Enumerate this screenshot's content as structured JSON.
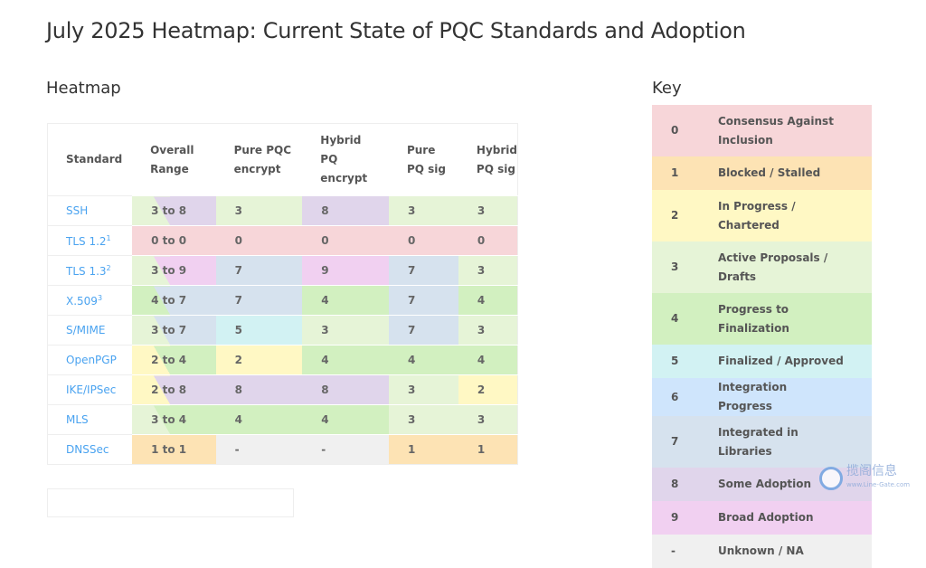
{
  "page_title": "July 2025 Heatmap: Current State of PQC Standards and Adoption",
  "heatmap": {
    "title": "Heatmap",
    "headers": [
      "Standard",
      "Overall Range",
      "Pure PQC encrypt",
      "Hybrid PQ encrypt",
      "Pure PQ sig",
      "Hybrid PQ sig"
    ],
    "rows": [
      {
        "standard": "SSH",
        "sup": "",
        "range": "3 to 8",
        "low": "3",
        "high": "8",
        "values": [
          "3",
          "8",
          "3",
          "3"
        ]
      },
      {
        "standard": "TLS 1.2",
        "sup": "1",
        "range": "0 to 0",
        "low": "0",
        "high": "0",
        "values": [
          "0",
          "0",
          "0",
          "0"
        ]
      },
      {
        "standard": "TLS 1.3",
        "sup": "2",
        "range": "3 to 9",
        "low": "3",
        "high": "9",
        "values": [
          "7",
          "9",
          "7",
          "3"
        ]
      },
      {
        "standard": "X.509",
        "sup": "3",
        "range": "4 to 7",
        "low": "4",
        "high": "7",
        "values": [
          "7",
          "4",
          "7",
          "4"
        ]
      },
      {
        "standard": "S/MIME",
        "sup": "",
        "range": "3 to 7",
        "low": "3",
        "high": "7",
        "values": [
          "5",
          "3",
          "7",
          "3"
        ]
      },
      {
        "standard": "OpenPGP",
        "sup": "",
        "range": "2 to 4",
        "low": "2",
        "high": "4",
        "values": [
          "2",
          "4",
          "4",
          "4"
        ]
      },
      {
        "standard": "IKE/IPSec",
        "sup": "",
        "range": "2 to 8",
        "low": "2",
        "high": "8",
        "values": [
          "8",
          "8",
          "3",
          "2"
        ]
      },
      {
        "standard": "MLS",
        "sup": "",
        "range": "3 to 4",
        "low": "3",
        "high": "4",
        "values": [
          "4",
          "4",
          "3",
          "3"
        ]
      },
      {
        "standard": "DNSSec",
        "sup": "",
        "range": "1 to 1",
        "low": "1",
        "high": "1",
        "values": [
          "-",
          "-",
          "1",
          "1"
        ]
      }
    ]
  },
  "key": {
    "title": "Key",
    "items": [
      {
        "level": "0",
        "label": "Consensus Against Inclusion",
        "color": "#f7d6d9"
      },
      {
        "level": "1",
        "label": "Blocked / Stalled",
        "color": "#fde3b4"
      },
      {
        "level": "2",
        "label": "In Progress / Chartered",
        "color": "#fff8c4"
      },
      {
        "level": "3",
        "label": "Active Proposals / Drafts",
        "color": "#e6f4d7"
      },
      {
        "level": "4",
        "label": "Progress to Finalization",
        "color": "#d2f0c0"
      },
      {
        "level": "5",
        "label": "Finalized / Approved",
        "color": "#d2f2f3"
      },
      {
        "level": "6",
        "label": "Integration Progress",
        "color": "#cfe5fc"
      },
      {
        "level": "7",
        "label": "Integrated in Libraries",
        "color": "#d6e2ee"
      },
      {
        "level": "8",
        "label": "Some Adoption",
        "color": "#e0d5eb"
      },
      {
        "level": "9",
        "label": "Broad Adoption",
        "color": "#f1d0f1"
      },
      {
        "level": "-",
        "label": "Unknown / NA",
        "color": "#f0f0f0"
      }
    ]
  },
  "watermark": {
    "name": "揽阁信息",
    "url": "www.Line-Gate.com"
  }
}
